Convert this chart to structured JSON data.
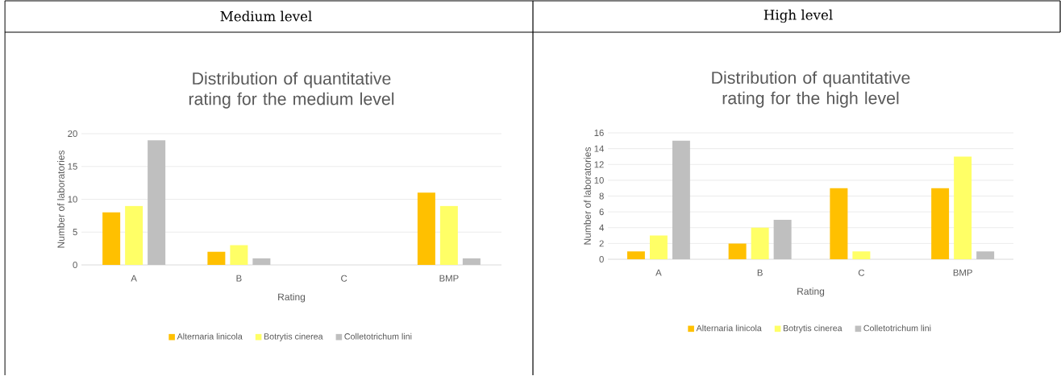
{
  "chart_data": [
    {
      "type": "bar",
      "title": "Distribution of quantitative rating for the medium level",
      "xlabel": "Rating",
      "ylabel": "Number of laboratories",
      "annotations": [
        "Medium level"
      ],
      "categories": [
        "A",
        "B",
        "C",
        "BMP"
      ],
      "series": [
        {
          "name": "Alternaria linicola",
          "color": "#ffc000",
          "values": [
            8,
            2,
            0,
            11
          ]
        },
        {
          "name": "Botrytis cinerea",
          "color": "#ffff66",
          "values": [
            9,
            3,
            0,
            9
          ]
        },
        {
          "name": "Colletotrichum lini",
          "color": "#bfbfbf",
          "values": [
            19,
            1,
            0,
            1
          ]
        }
      ],
      "ylim": [
        0,
        20
      ],
      "yticks": [
        0,
        5,
        10,
        15,
        20
      ],
      "grid": "y",
      "legend": "bottom"
    },
    {
      "type": "bar",
      "title": "Distribution of quantitative rating for the high level",
      "xlabel": "Rating",
      "ylabel": "Number of laboratories",
      "annotations": [
        "High level"
      ],
      "categories": [
        "A",
        "B",
        "C",
        "BMP"
      ],
      "series": [
        {
          "name": "Alternaria linicola",
          "color": "#ffc000",
          "values": [
            1,
            2,
            9,
            9
          ]
        },
        {
          "name": "Botrytis cinerea",
          "color": "#ffff66",
          "values": [
            3,
            4,
            1,
            13
          ]
        },
        {
          "name": "Colletotrichum lini",
          "color": "#bfbfbf",
          "values": [
            15,
            5,
            0,
            1
          ]
        }
      ],
      "ylim": [
        0,
        16
      ],
      "yticks": [
        0,
        2,
        4,
        6,
        8,
        10,
        12,
        14,
        16
      ],
      "grid": "y",
      "legend": "bottom"
    }
  ]
}
